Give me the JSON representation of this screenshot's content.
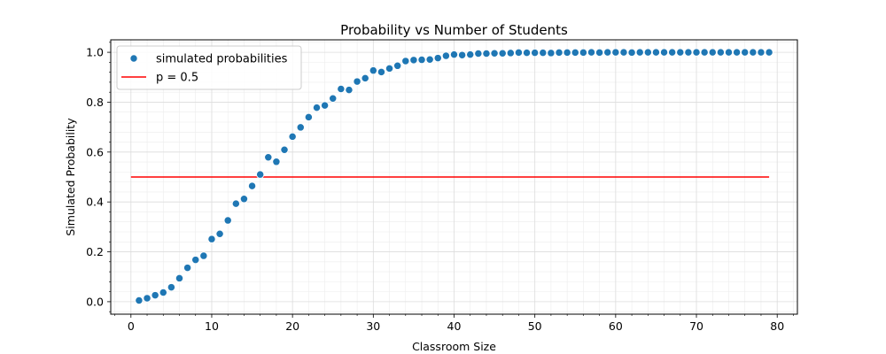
{
  "chart_data": {
    "type": "scatter",
    "title": "Probability vs Number of Students",
    "xlabel": "Classroom Size",
    "ylabel": "Simulated Probability",
    "xlim": [
      -2.5,
      82.5
    ],
    "ylim": [
      -0.05,
      1.05
    ],
    "xticks": [
      0,
      10,
      20,
      30,
      40,
      50,
      60,
      70,
      80
    ],
    "xtick_labels": [
      "0",
      "10",
      "20",
      "30",
      "40",
      "50",
      "60",
      "70",
      "80"
    ],
    "yticks": [
      0.0,
      0.2,
      0.4,
      0.6,
      0.8,
      1.0
    ],
    "ytick_labels": [
      "0.0",
      "0.2",
      "0.4",
      "0.6",
      "0.8",
      "1.0"
    ],
    "grid": true,
    "legend_position": "top-left",
    "series": [
      {
        "name": "simulated probabilities",
        "kind": "scatter",
        "color": "#1f77b4",
        "x": [
          1,
          2,
          3,
          4,
          5,
          6,
          7,
          8,
          9,
          10,
          11,
          12,
          13,
          14,
          15,
          16,
          17,
          18,
          19,
          20,
          21,
          22,
          23,
          24,
          25,
          26,
          27,
          28,
          29,
          30,
          31,
          32,
          33,
          34,
          35,
          36,
          37,
          38,
          39,
          40,
          41,
          42,
          43,
          44,
          45,
          46,
          47,
          48,
          49,
          50,
          51,
          52,
          53,
          54,
          55,
          56,
          57,
          58,
          59,
          60,
          61,
          62,
          63,
          64,
          65,
          66,
          67,
          68,
          69,
          70,
          71,
          72,
          73,
          74,
          75,
          76,
          77,
          78,
          79
        ],
        "y": [
          0.005,
          0.014,
          0.026,
          0.037,
          0.058,
          0.094,
          0.136,
          0.168,
          0.184,
          0.251,
          0.272,
          0.326,
          0.393,
          0.412,
          0.464,
          0.51,
          0.579,
          0.561,
          0.609,
          0.662,
          0.699,
          0.74,
          0.778,
          0.787,
          0.815,
          0.853,
          0.849,
          0.883,
          0.896,
          0.927,
          0.921,
          0.935,
          0.946,
          0.965,
          0.969,
          0.97,
          0.971,
          0.977,
          0.986,
          0.991,
          0.989,
          0.991,
          0.995,
          0.995,
          0.996,
          0.996,
          0.997,
          0.999,
          0.998,
          0.998,
          0.998,
          0.997,
          0.999,
          0.999,
          0.999,
          0.999,
          1.0,
          0.999,
          1.0,
          1.0,
          1.0,
          0.999,
          1.0,
          1.0,
          1.0,
          1.0,
          1.0,
          1.0,
          1.0,
          1.0,
          1.0,
          1.0,
          1.0,
          1.0,
          1.0,
          1.0,
          1.0,
          1.0,
          1.0
        ]
      },
      {
        "name": "p = 0.5",
        "kind": "line",
        "color": "#ff0000",
        "x": [
          0,
          79
        ],
        "y": [
          0.5,
          0.5
        ]
      }
    ]
  }
}
